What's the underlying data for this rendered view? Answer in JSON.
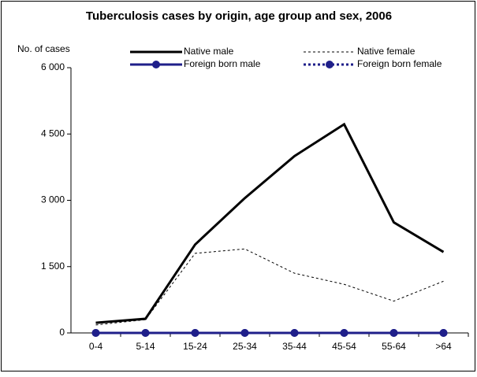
{
  "chart_data": {
    "type": "line",
    "title": "Tuberculosis cases by origin, age group and sex, 2006",
    "y_label": "No. of cases",
    "categories": [
      "0-4",
      "5-14",
      "15-24",
      "25-34",
      "35-44",
      "45-54",
      "55-64",
      ">64"
    ],
    "series": [
      {
        "name": "Native male",
        "color": "#000000",
        "style": "solid",
        "marker": false,
        "values": [
          230,
          320,
          2000,
          3050,
          4000,
          4720,
          2500,
          1830
        ]
      },
      {
        "name": "Native female",
        "color": "#000000",
        "style": "dashed",
        "marker": false,
        "values": [
          180,
          300,
          1800,
          1900,
          1350,
          1100,
          720,
          1170
        ]
      },
      {
        "name": "Foreign born male",
        "color": "#1f1f8a",
        "style": "solid",
        "marker": true,
        "values": [
          0,
          0,
          0,
          0,
          0,
          0,
          0,
          0
        ]
      },
      {
        "name": "Foreign born female",
        "color": "#1f1f8a",
        "style": "dashed",
        "marker": true,
        "values": [
          0,
          0,
          0,
          0,
          0,
          0,
          0,
          0
        ]
      }
    ],
    "ylim": [
      0,
      6000
    ],
    "yticks": [
      0,
      {
        "value": 1500,
        "label": "1 500"
      },
      {
        "value": 3000,
        "label": "3 000"
      },
      {
        "value": 4500,
        "label": "4 500"
      },
      {
        "value": 6000,
        "label": "6 000"
      }
    ],
    "grid": false
  }
}
